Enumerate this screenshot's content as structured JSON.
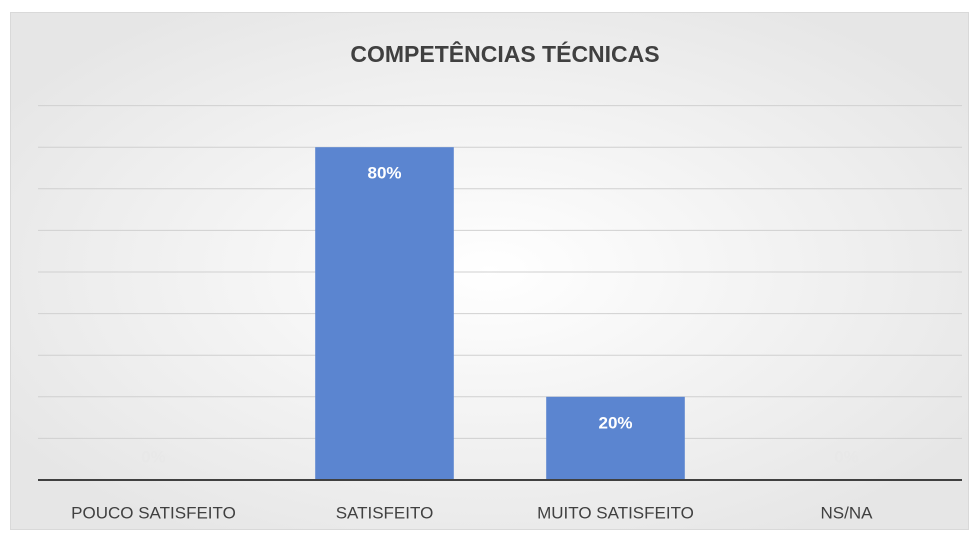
{
  "chart_data": {
    "type": "bar",
    "title": "COMPETÊNCIAS TÉCNICAS",
    "categories": [
      "POUCO SATISFEITO",
      "SATISFEITO",
      "MUITO SATISFEITO",
      "NS/NA"
    ],
    "values": [
      0,
      80,
      20,
      0
    ],
    "value_labels": [
      "0%",
      "80%",
      "20%",
      "0%"
    ],
    "color": "#5b85d0",
    "ylim": [
      0,
      90
    ],
    "yticks": [
      0,
      10,
      20,
      30,
      40,
      50,
      60,
      70,
      80,
      90
    ],
    "grid": true
  }
}
